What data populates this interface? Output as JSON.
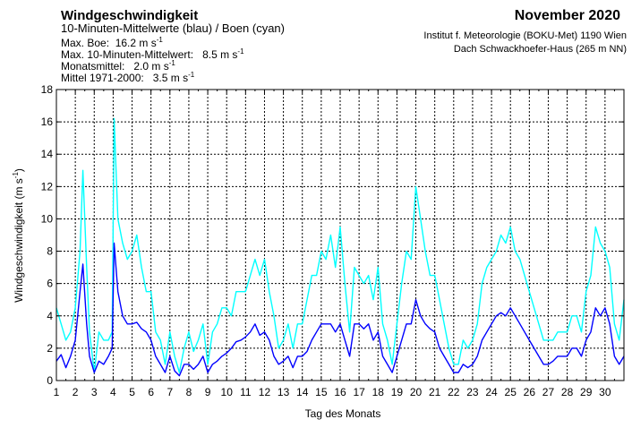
{
  "header": {
    "title": "Windgeschwindigkeit",
    "subtitle": "10-Minuten-Mittelwerte (blau) / Boen (cyan)",
    "max_gust_label": "Max. Boe:",
    "max_gust_value": "16.2 m s",
    "max_mean_label": "Max. 10-Minuten-Mittelwert:",
    "max_mean_value": "8.5 m s",
    "monthly_mean_label": "Monatsmittel:",
    "monthly_mean_value": "2.0 m s",
    "climate_mean_label": "Mittel 1971-2000:",
    "climate_mean_value": "3.5 m s",
    "unit_exponent": "-1",
    "month": "November 2020",
    "institute_line1": "Institut f. Meteorologie (BOKU-Met) 1190 Wien",
    "institute_line2": "Dach Schwackhoefer-Haus (265 m NN)"
  },
  "chart_data": {
    "type": "line",
    "xlabel": "Tag des Monats",
    "ylabel": "Windgeschwindigkeit (m s",
    "ylabel_exponent": "-1",
    "ylabel_close": ")",
    "xlim": [
      1,
      31
    ],
    "ylim": [
      0,
      18
    ],
    "x_ticks": [
      "1",
      "2",
      "3",
      "4",
      "5",
      "6",
      "7",
      "8",
      "9",
      "10",
      "11",
      "12",
      "13",
      "14",
      "15",
      "16",
      "17",
      "18",
      "19",
      "20",
      "21",
      "22",
      "23",
      "24",
      "25",
      "26",
      "27",
      "28",
      "29",
      "30"
    ],
    "y_ticks": [
      "0",
      "2",
      "4",
      "6",
      "8",
      "10",
      "12",
      "14",
      "16",
      "18"
    ],
    "grid": true,
    "colors": {
      "mean": "#0000ff",
      "gust": "#00ffff"
    },
    "series": [
      {
        "name": "10-Minuten-Mittelwerte",
        "color": "#0000ff",
        "x": [
          1.0,
          1.25,
          1.5,
          1.75,
          2.0,
          2.25,
          2.4,
          2.6,
          2.75,
          3.0,
          3.25,
          3.5,
          3.75,
          3.95,
          4.05,
          4.25,
          4.5,
          4.75,
          5.0,
          5.25,
          5.5,
          5.75,
          6.0,
          6.25,
          6.5,
          6.75,
          7.0,
          7.25,
          7.5,
          7.75,
          8.0,
          8.25,
          8.5,
          8.75,
          9.0,
          9.25,
          9.5,
          9.75,
          10.0,
          10.25,
          10.5,
          10.75,
          11.0,
          11.25,
          11.5,
          11.75,
          12.0,
          12.25,
          12.5,
          12.75,
          13.0,
          13.25,
          13.5,
          13.75,
          14.0,
          14.25,
          14.5,
          14.75,
          15.0,
          15.25,
          15.5,
          15.75,
          16.0,
          16.25,
          16.5,
          16.75,
          17.0,
          17.25,
          17.5,
          17.75,
          18.0,
          18.25,
          18.5,
          18.75,
          19.0,
          19.25,
          19.5,
          19.75,
          20.0,
          20.25,
          20.5,
          20.75,
          21.0,
          21.25,
          21.5,
          21.75,
          22.0,
          22.25,
          22.5,
          22.75,
          23.0,
          23.25,
          23.5,
          23.75,
          24.0,
          24.25,
          24.5,
          24.75,
          25.0,
          25.25,
          25.5,
          25.75,
          26.0,
          26.25,
          26.5,
          26.75,
          27.0,
          27.25,
          27.5,
          27.75,
          28.0,
          28.25,
          28.5,
          28.75,
          29.0,
          29.25,
          29.5,
          29.75,
          30.0,
          30.25,
          30.5,
          30.75,
          31.0
        ],
        "y": [
          1.2,
          1.6,
          0.8,
          1.5,
          2.5,
          5.5,
          7.2,
          3.5,
          1.5,
          0.5,
          1.2,
          1.0,
          1.5,
          2.0,
          8.5,
          5.5,
          4.0,
          3.5,
          3.5,
          3.6,
          3.2,
          3.0,
          2.5,
          1.5,
          1.0,
          0.5,
          1.5,
          0.6,
          0.3,
          1.0,
          1.0,
          0.7,
          1.0,
          1.5,
          0.5,
          1.0,
          1.2,
          1.5,
          1.7,
          2.0,
          2.4,
          2.5,
          2.7,
          3.0,
          3.5,
          2.8,
          3.0,
          2.5,
          1.5,
          1.0,
          1.2,
          1.5,
          0.8,
          1.5,
          1.5,
          1.8,
          2.5,
          3.0,
          3.5,
          3.5,
          3.5,
          3.0,
          3.5,
          2.5,
          1.5,
          3.5,
          3.5,
          3.2,
          3.5,
          2.5,
          3.0,
          1.5,
          1.0,
          0.5,
          1.5,
          2.5,
          3.5,
          3.5,
          5.0,
          4.0,
          3.5,
          3.2,
          3.0,
          2.0,
          1.5,
          1.0,
          0.5,
          0.5,
          1.0,
          0.8,
          1.0,
          1.5,
          2.5,
          3.0,
          3.5,
          4.0,
          4.2,
          4.0,
          4.5,
          4.0,
          3.5,
          3.0,
          2.5,
          2.0,
          1.5,
          1.0,
          1.0,
          1.2,
          1.5,
          1.5,
          1.5,
          2.0,
          2.0,
          1.5,
          2.5,
          3.0,
          4.5,
          4.0,
          4.5,
          3.5,
          1.5,
          1.0,
          1.5
        ]
      },
      {
        "name": "Boen",
        "color": "#00ffff",
        "x": [
          1.0,
          1.25,
          1.5,
          1.75,
          2.0,
          2.25,
          2.4,
          2.6,
          2.75,
          3.0,
          3.25,
          3.5,
          3.75,
          3.95,
          4.05,
          4.25,
          4.5,
          4.75,
          5.0,
          5.25,
          5.5,
          5.75,
          6.0,
          6.25,
          6.5,
          6.75,
          7.0,
          7.25,
          7.5,
          7.75,
          8.0,
          8.25,
          8.5,
          8.75,
          9.0,
          9.25,
          9.5,
          9.75,
          10.0,
          10.25,
          10.5,
          10.75,
          11.0,
          11.25,
          11.5,
          11.75,
          12.0,
          12.25,
          12.5,
          12.75,
          13.0,
          13.25,
          13.5,
          13.75,
          14.0,
          14.25,
          14.5,
          14.75,
          15.0,
          15.25,
          15.5,
          15.75,
          16.0,
          16.25,
          16.5,
          16.75,
          17.0,
          17.25,
          17.5,
          17.75,
          18.0,
          18.25,
          18.5,
          18.75,
          19.0,
          19.25,
          19.5,
          19.75,
          20.0,
          20.25,
          20.5,
          20.75,
          21.0,
          21.25,
          21.5,
          21.75,
          22.0,
          22.25,
          22.5,
          22.75,
          23.0,
          23.25,
          23.5,
          23.75,
          24.0,
          24.25,
          24.5,
          24.75,
          25.0,
          25.25,
          25.5,
          25.75,
          26.0,
          26.25,
          26.5,
          26.75,
          27.0,
          27.25,
          27.5,
          27.75,
          28.0,
          28.25,
          28.5,
          28.75,
          29.0,
          29.25,
          29.5,
          29.75,
          30.0,
          30.25,
          30.5,
          30.75,
          31.0
        ],
        "y": [
          4.5,
          3.5,
          2.5,
          3.0,
          4.5,
          8.0,
          13.0,
          7.0,
          3.0,
          0.5,
          3.0,
          2.5,
          2.5,
          3.0,
          16.2,
          10.0,
          8.5,
          7.5,
          8.0,
          9.0,
          7.0,
          5.5,
          5.5,
          3.0,
          2.5,
          1.0,
          3.0,
          1.5,
          0.5,
          2.0,
          3.0,
          1.8,
          2.5,
          3.5,
          1.0,
          3.0,
          3.5,
          4.5,
          4.5,
          4.0,
          5.5,
          5.5,
          5.5,
          6.5,
          7.5,
          6.5,
          7.5,
          5.5,
          4.0,
          2.0,
          2.5,
          3.5,
          2.0,
          3.5,
          3.5,
          5.0,
          6.5,
          6.5,
          8.0,
          7.5,
          9.0,
          7.0,
          9.5,
          6.0,
          3.0,
          7.0,
          6.5,
          6.0,
          6.5,
          5.0,
          7.0,
          3.5,
          2.5,
          1.0,
          3.5,
          6.0,
          8.0,
          7.5,
          12.0,
          10.0,
          8.0,
          6.5,
          6.5,
          5.0,
          3.5,
          2.0,
          1.0,
          1.0,
          2.5,
          2.0,
          2.5,
          3.5,
          6.0,
          7.0,
          7.5,
          8.0,
          9.0,
          8.5,
          9.5,
          8.0,
          7.5,
          6.5,
          5.5,
          4.5,
          3.5,
          2.5,
          2.5,
          2.5,
          3.0,
          3.0,
          3.0,
          4.0,
          4.0,
          3.0,
          5.5,
          6.5,
          9.5,
          8.5,
          8.0,
          7.0,
          3.5,
          2.5,
          5.0
        ]
      }
    ]
  }
}
